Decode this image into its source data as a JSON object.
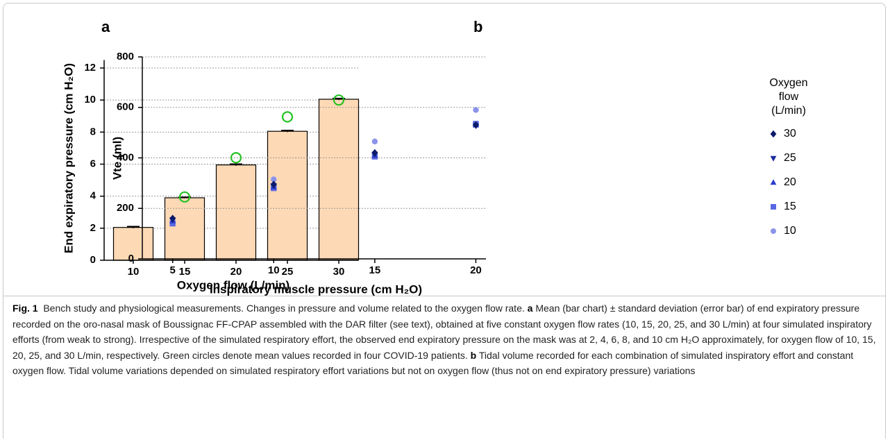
{
  "chart_data": [
    {
      "type": "bar",
      "panel": "a",
      "y_label": "End expiratory pressure (cm H₂O)",
      "x_label": "Oxygen flow (L/min)",
      "categories": [
        "10",
        "15",
        "20",
        "25",
        "30"
      ],
      "values": [
        2.05,
        3.9,
        5.95,
        8.05,
        10.05
      ],
      "errors": [
        0.05,
        0.03,
        0.05,
        0.05,
        0.05
      ],
      "color": "#fdd9b5",
      "patient_values": [
        null,
        3.95,
        6.4,
        8.95,
        10.0
      ],
      "patient_color": "#22c322",
      "ylim": [
        0,
        12.5
      ],
      "yticks": [
        0,
        2,
        4,
        6,
        8,
        10,
        12
      ],
      "grid": true
    },
    {
      "type": "scatter",
      "panel": "b",
      "y_label": "Vte (ml)",
      "x_label": "Inspiratory muscle pressure (cm H₂O)",
      "legend_title": "Oxygen flow (L/min)",
      "x": [
        5,
        10,
        15,
        20
      ],
      "series": [
        {
          "name": "30",
          "color": "#0b1a6b",
          "marker": "diamond",
          "values": [
            160,
            295,
            420,
            530
          ]
        },
        {
          "name": "25",
          "color": "#1c2c9e",
          "marker": "triangle-down",
          "values": [
            155,
            290,
            415,
            528
          ]
        },
        {
          "name": "20",
          "color": "#2a3ccc",
          "marker": "triangle-up",
          "values": [
            150,
            285,
            410,
            530
          ]
        },
        {
          "name": "15",
          "color": "#5a68e2",
          "marker": "square",
          "values": [
            140,
            280,
            405,
            535
          ]
        },
        {
          "name": "10",
          "color": "#8c94ea",
          "marker": "circle",
          "values": [
            150,
            315,
            465,
            590
          ]
        }
      ],
      "xlim": [
        3.5,
        20.5
      ],
      "xticks": [
        5,
        10,
        15,
        20
      ],
      "ylim": [
        0,
        800
      ],
      "yticks": [
        0,
        200,
        400,
        600,
        800
      ],
      "grid": true
    }
  ],
  "caption": {
    "label": "Fig. 1",
    "text": "Bench study and physiological measurements. Changes in pressure and volume related to the oxygen flow rate.",
    "parts": [
      {
        "key": "a",
        "text": "Mean (bar chart) ± standard deviation (error bar) of end expiratory pressure recorded on the oro-nasal mask of Boussignac FF-CPAP assembled with the DAR filter (see text), obtained at five constant oxygen flow rates (10, 15, 20, 25, and 30 L/min) at four simulated inspiratory efforts (from weak to strong). Irrespective of the simulated respiratory effort, the observed end expiratory pressure on the mask was at 2, 4, 6, 8, and 10 cm H₂O approximately, for oxygen flow of 10, 15, 20, 25, and 30 L/min, respectively. Green circles denote mean values recorded in four COVID-19 patients."
      },
      {
        "key": "b",
        "text": "Tidal volume recorded for each combination of simulated inspiratory effort and constant oxygen flow. Tidal volume variations depended on simulated respiratory effort variations but not on oxygen flow (thus not on end expiratory pressure) variations"
      }
    ]
  }
}
